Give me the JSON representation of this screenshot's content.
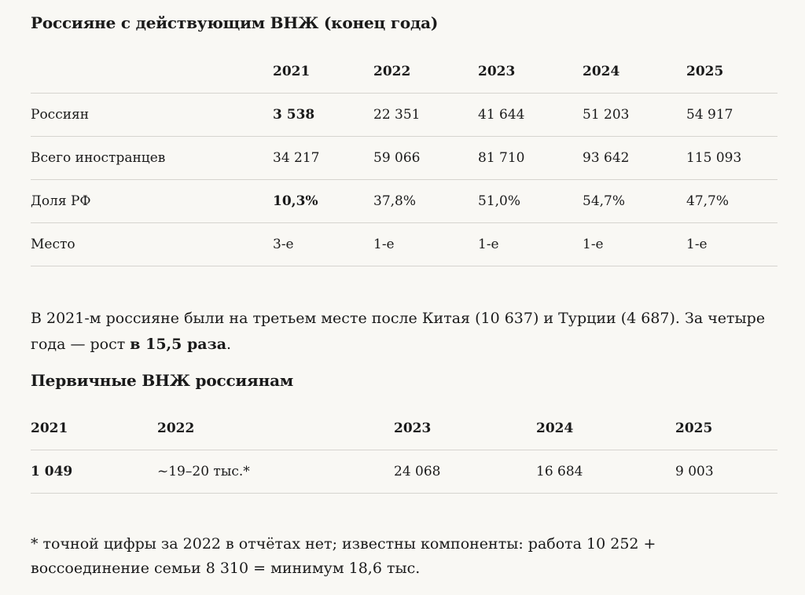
{
  "section1": {
    "title": "Россияне с действующим ВНЖ (конец года)",
    "columns": [
      "",
      "2021",
      "2022",
      "2023",
      "2024",
      "2025"
    ],
    "rows": [
      {
        "label": "Россиян",
        "values": [
          "3 538",
          "22 351",
          "41 644",
          "51 203",
          "54 917"
        ]
      },
      {
        "label": "Всего иностранцев",
        "values": [
          "34 217",
          "59 066",
          "81 710",
          "93 642",
          "115 093"
        ]
      },
      {
        "label": "Доля РФ",
        "values": [
          "10,3%",
          "37,8%",
          "51,0%",
          "54,7%",
          "47,7%"
        ]
      },
      {
        "label": "Место",
        "values": [
          "3-е",
          "1-е",
          "1-е",
          "1-е",
          "1-е"
        ]
      }
    ]
  },
  "paragraph": {
    "text": "В 2021-м россияне были на третьем месте после Китая (10 637) и Турции (4 687). За четыре года — рост ",
    "bold": "в 15,5 раза",
    "end": "."
  },
  "section2": {
    "title": "Первичные ВНЖ россиянам",
    "columns": [
      "2021",
      "2022",
      "2023",
      "2024",
      "2025"
    ],
    "values": [
      "1 049",
      "~19–20 тыс.*",
      "24 068",
      "16 684",
      "9 003"
    ]
  },
  "footnote": "* точной цифры за 2022 в отчётах нет; известны компоненты: работа 10 252 + воссоединение семьи 8 310 = минимум 18,6 тыс."
}
